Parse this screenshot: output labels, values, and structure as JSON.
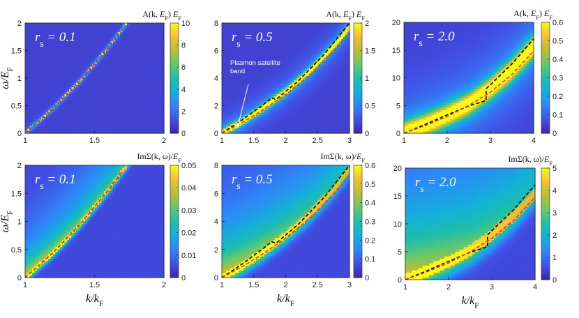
{
  "colors": {
    "background_low": "#3b2cb8",
    "dashed_black": "#000000",
    "dashed_red": "#e8303a",
    "ridge_peak": "#ffff30",
    "text_on_plot": "#ffffff"
  },
  "chart_data": [
    {
      "id": "a",
      "type": "heatmap",
      "title": "A(k, E_F) E_F",
      "panel_label": "r_s = 0.1",
      "xlabel": "",
      "ylabel": "ω/E_F",
      "xlim": [
        1,
        2
      ],
      "ylim": [
        0,
        2
      ],
      "xticks": [
        1,
        1.5,
        2
      ],
      "yticks": [
        0,
        0.5,
        1,
        1.5,
        2
      ],
      "xtick_labels": [
        "1",
        "1.5",
        "2"
      ],
      "ytick_labels": [
        "0",
        "0.5",
        "1",
        "1.5",
        "2"
      ],
      "clim": [
        0,
        10
      ],
      "cticks": [
        0,
        2,
        4,
        6,
        8,
        10
      ],
      "ctick_labels": [
        "0",
        "2",
        "4",
        "6",
        "8",
        "10"
      ],
      "series": [
        {
          "name": "black dashed",
          "style": "dashed",
          "color": "#000000",
          "x": [
            1.0,
            1.2,
            1.4,
            1.6,
            1.7
          ],
          "y": [
            0.0,
            0.44,
            0.96,
            1.56,
            1.89
          ]
        },
        {
          "name": "red dashed",
          "style": "dashed",
          "color": "#e8303a",
          "x": [
            1.0,
            1.2,
            1.4,
            1.6,
            1.7
          ],
          "y": [
            0.0,
            0.44,
            0.96,
            1.56,
            1.89
          ]
        }
      ],
      "ridge": {
        "x": [
          1.0,
          1.2,
          1.4,
          1.6,
          1.7
        ],
        "y": [
          0.0,
          0.44,
          0.96,
          1.56,
          1.89
        ],
        "width": 0.015,
        "peak": 10,
        "broad": 0.3
      }
    },
    {
      "id": "b",
      "type": "heatmap",
      "title": "A(k, E_F) E_F",
      "panel_label": "r_s = 0.5",
      "xlabel": "",
      "ylabel": "",
      "xlim": [
        1,
        3
      ],
      "ylim": [
        0,
        8
      ],
      "xticks": [
        1,
        1.5,
        2,
        2.5,
        3
      ],
      "yticks": [
        0,
        2,
        4,
        6,
        8
      ],
      "xtick_labels": [
        "1",
        "1.5",
        "2",
        "2.5",
        "3"
      ],
      "ytick_labels": [
        "0",
        "2",
        "4",
        "6",
        "8"
      ],
      "clim": [
        0,
        2
      ],
      "cticks": [
        0,
        0.5,
        1,
        1.5,
        2
      ],
      "ctick_labels": [
        "0",
        "0.5",
        "1",
        "1.5",
        "2"
      ],
      "annotation": {
        "lines": [
          "Plasmon satellite",
          "band"
        ],
        "x": 1.25,
        "y": 0.3
      },
      "series": [
        {
          "name": "black dashed",
          "style": "dashed",
          "color": "#000000",
          "x": [
            1.0,
            1.3,
            1.6,
            1.78,
            1.85,
            2.2,
            2.6,
            3.0
          ],
          "y": [
            0.0,
            0.9,
            1.9,
            2.55,
            2.45,
            3.8,
            5.7,
            8.0
          ]
        },
        {
          "name": "red dashed",
          "style": "dashed",
          "color": "#e8303a",
          "x": [
            1.0,
            1.3,
            1.6,
            2.0,
            2.4,
            2.8,
            3.0
          ],
          "y": [
            0.0,
            0.72,
            1.56,
            2.8,
            4.3,
            6.2,
            7.3
          ]
        }
      ],
      "ridge": {
        "x": [
          1.0,
          1.3,
          1.6,
          2.0,
          2.4,
          2.8,
          3.0
        ],
        "y": [
          0.0,
          0.78,
          1.68,
          3.0,
          4.6,
          6.55,
          7.7
        ],
        "width": 0.06,
        "peak": 2.0,
        "broad": 0.3
      }
    },
    {
      "id": "c",
      "type": "heatmap",
      "title": "A(k, E_F) E_F",
      "panel_label": "r_s = 2.0",
      "xlabel": "",
      "ylabel": "",
      "xlim": [
        1,
        4
      ],
      "ylim": [
        0,
        20
      ],
      "xticks": [
        1,
        2,
        3,
        4
      ],
      "yticks": [
        0,
        5,
        10,
        15,
        20
      ],
      "xtick_labels": [
        "1",
        "2",
        "3",
        "4"
      ],
      "ytick_labels": [
        "0",
        "5",
        "10",
        "15",
        "20"
      ],
      "clim": [
        0,
        0.6
      ],
      "cticks": [
        0,
        0.1,
        0.2,
        0.3,
        0.4,
        0.5,
        0.6
      ],
      "ctick_labels": [
        "0",
        "0.1",
        "0.2",
        "0.3",
        "0.4",
        "0.5",
        "0.6"
      ],
      "series": [
        {
          "name": "black dashed",
          "style": "dashed",
          "color": "#000000",
          "x": [
            1.0,
            1.5,
            2.0,
            2.5,
            2.9,
            2.9,
            3.5,
            4.0
          ],
          "y": [
            0.0,
            1.6,
            3.3,
            4.9,
            5.9,
            8.0,
            12.5,
            17.0
          ]
        },
        {
          "name": "red dashed",
          "style": "dashed",
          "color": "#e8303a",
          "x": [
            1.0,
            1.5,
            2.0,
            2.5,
            3.0,
            3.5,
            4.0
          ],
          "y": [
            0.0,
            1.4,
            3.0,
            5.0,
            7.4,
            10.6,
            14.8
          ]
        }
      ],
      "ridge": {
        "x": [
          1.0,
          1.5,
          2.0,
          2.5,
          3.0,
          3.5,
          4.0
        ],
        "y": [
          0.0,
          1.5,
          3.2,
          5.2,
          8.0,
          11.4,
          15.6
        ],
        "width": 0.18,
        "peak": 0.5,
        "broad": 0.45
      }
    },
    {
      "id": "d",
      "type": "heatmap",
      "title": "ImΣ(k, ω)/E_F",
      "panel_label": "r_s = 0.1",
      "xlabel": "k/k_F",
      "ylabel": "ω/E_F",
      "xlim": [
        1,
        2
      ],
      "ylim": [
        0,
        2
      ],
      "xticks": [
        1,
        1.5,
        2
      ],
      "yticks": [
        0,
        0.5,
        1,
        1.5,
        2
      ],
      "xtick_labels": [
        "1",
        "1.5",
        "2"
      ],
      "ytick_labels": [
        "0",
        "0.5",
        "1",
        "1.5",
        "2"
      ],
      "clim": [
        0,
        0.05
      ],
      "cticks": [
        0,
        0.01,
        0.02,
        0.03,
        0.04,
        0.05
      ],
      "ctick_labels": [
        "0",
        "0.01",
        "0.02",
        "0.03",
        "0.04",
        "0.05"
      ],
      "series": [
        {
          "name": "black dashed",
          "style": "dashed",
          "color": "#000000",
          "x": [
            1.0,
            1.2,
            1.4,
            1.6,
            1.7
          ],
          "y": [
            0.0,
            0.44,
            0.96,
            1.56,
            1.89
          ]
        },
        {
          "name": "red dashed",
          "style": "dashed",
          "color": "#e8303a",
          "x": [
            1.0,
            1.2,
            1.4,
            1.6,
            1.7
          ],
          "y": [
            0.0,
            0.44,
            0.96,
            1.56,
            1.89
          ]
        }
      ],
      "ridge": {
        "x": [
          1.0,
          1.2,
          1.4,
          1.6,
          1.7
        ],
        "y": [
          0.0,
          0.44,
          0.96,
          1.56,
          1.89
        ],
        "width": 0.12,
        "peak": 0.05,
        "broad": 0.55,
        "upper": true
      }
    },
    {
      "id": "e",
      "type": "heatmap",
      "title": "ImΣ(k, ω)/E_F",
      "panel_label": "r_s = 0.5",
      "xlabel": "k/k_F",
      "ylabel": "",
      "xlim": [
        1,
        3
      ],
      "ylim": [
        0,
        8
      ],
      "xticks": [
        1,
        1.5,
        2,
        2.5,
        3
      ],
      "yticks": [
        0,
        2,
        4,
        6,
        8
      ],
      "xtick_labels": [
        "1",
        "1.5",
        "2",
        "2.5",
        "3"
      ],
      "ytick_labels": [
        "0",
        "2",
        "4",
        "6",
        "8"
      ],
      "clim": [
        0,
        0.6
      ],
      "cticks": [
        0,
        0.1,
        0.2,
        0.3,
        0.4,
        0.5,
        0.6
      ],
      "ctick_labels": [
        "0",
        "0.1",
        "0.2",
        "0.3",
        "0.4",
        "0.5",
        "0.6"
      ],
      "series": [
        {
          "name": "black dashed",
          "style": "dashed",
          "color": "#000000",
          "x": [
            1.0,
            1.3,
            1.6,
            1.78,
            1.85,
            2.2,
            2.6,
            3.0
          ],
          "y": [
            0.0,
            0.9,
            1.9,
            2.55,
            2.45,
            3.8,
            5.7,
            8.0
          ]
        },
        {
          "name": "red dashed",
          "style": "dashed",
          "color": "#e8303a",
          "x": [
            1.0,
            1.3,
            1.6,
            2.0,
            2.4,
            2.8,
            3.0
          ],
          "y": [
            0.0,
            0.72,
            1.56,
            2.8,
            4.3,
            6.2,
            7.3
          ]
        }
      ],
      "ridge": {
        "x": [
          1.0,
          1.3,
          1.6,
          2.0,
          2.4,
          2.8,
          3.0
        ],
        "y": [
          0.0,
          0.78,
          1.68,
          3.0,
          4.6,
          6.55,
          7.7
        ],
        "width": 0.22,
        "peak": 0.6,
        "broad": 0.5,
        "upper": true
      }
    },
    {
      "id": "f",
      "type": "heatmap",
      "title": "ImΣ(k, ω)/E_F",
      "panel_label": "r_s = 2.0",
      "xlabel": "k/k_F",
      "ylabel": "",
      "xlim": [
        1,
        4
      ],
      "ylim": [
        0,
        20
      ],
      "xticks": [
        1,
        2,
        3,
        4
      ],
      "yticks": [
        0,
        5,
        10,
        15,
        20
      ],
      "xtick_labels": [
        "1",
        "2",
        "3",
        "4"
      ],
      "ytick_labels": [
        "0",
        "5",
        "10",
        "15",
        "20"
      ],
      "clim": [
        0,
        5
      ],
      "cticks": [
        0,
        1,
        2,
        3,
        4,
        5
      ],
      "ctick_labels": [
        "0",
        "1",
        "2",
        "3",
        "4",
        "5"
      ],
      "series": [
        {
          "name": "black dashed",
          "style": "dashed",
          "color": "#000000",
          "x": [
            1.0,
            1.5,
            2.0,
            2.5,
            2.9,
            2.9,
            3.5,
            4.0
          ],
          "y": [
            0.0,
            1.6,
            3.3,
            4.9,
            5.9,
            8.0,
            12.5,
            17.0
          ]
        },
        {
          "name": "red dashed",
          "style": "dashed",
          "color": "#e8303a",
          "x": [
            1.0,
            1.5,
            2.0,
            2.5,
            3.0,
            3.5,
            4.0
          ],
          "y": [
            0.0,
            1.4,
            3.0,
            5.0,
            7.4,
            10.6,
            14.8
          ]
        }
      ],
      "ridge": {
        "x": [
          1.0,
          1.5,
          2.0,
          2.5,
          3.0,
          3.5,
          4.0
        ],
        "y": [
          0.0,
          1.5,
          3.2,
          5.2,
          8.0,
          11.4,
          15.6
        ],
        "width": 0.35,
        "peak": 5,
        "broad": 0.5,
        "upper": true
      }
    }
  ]
}
